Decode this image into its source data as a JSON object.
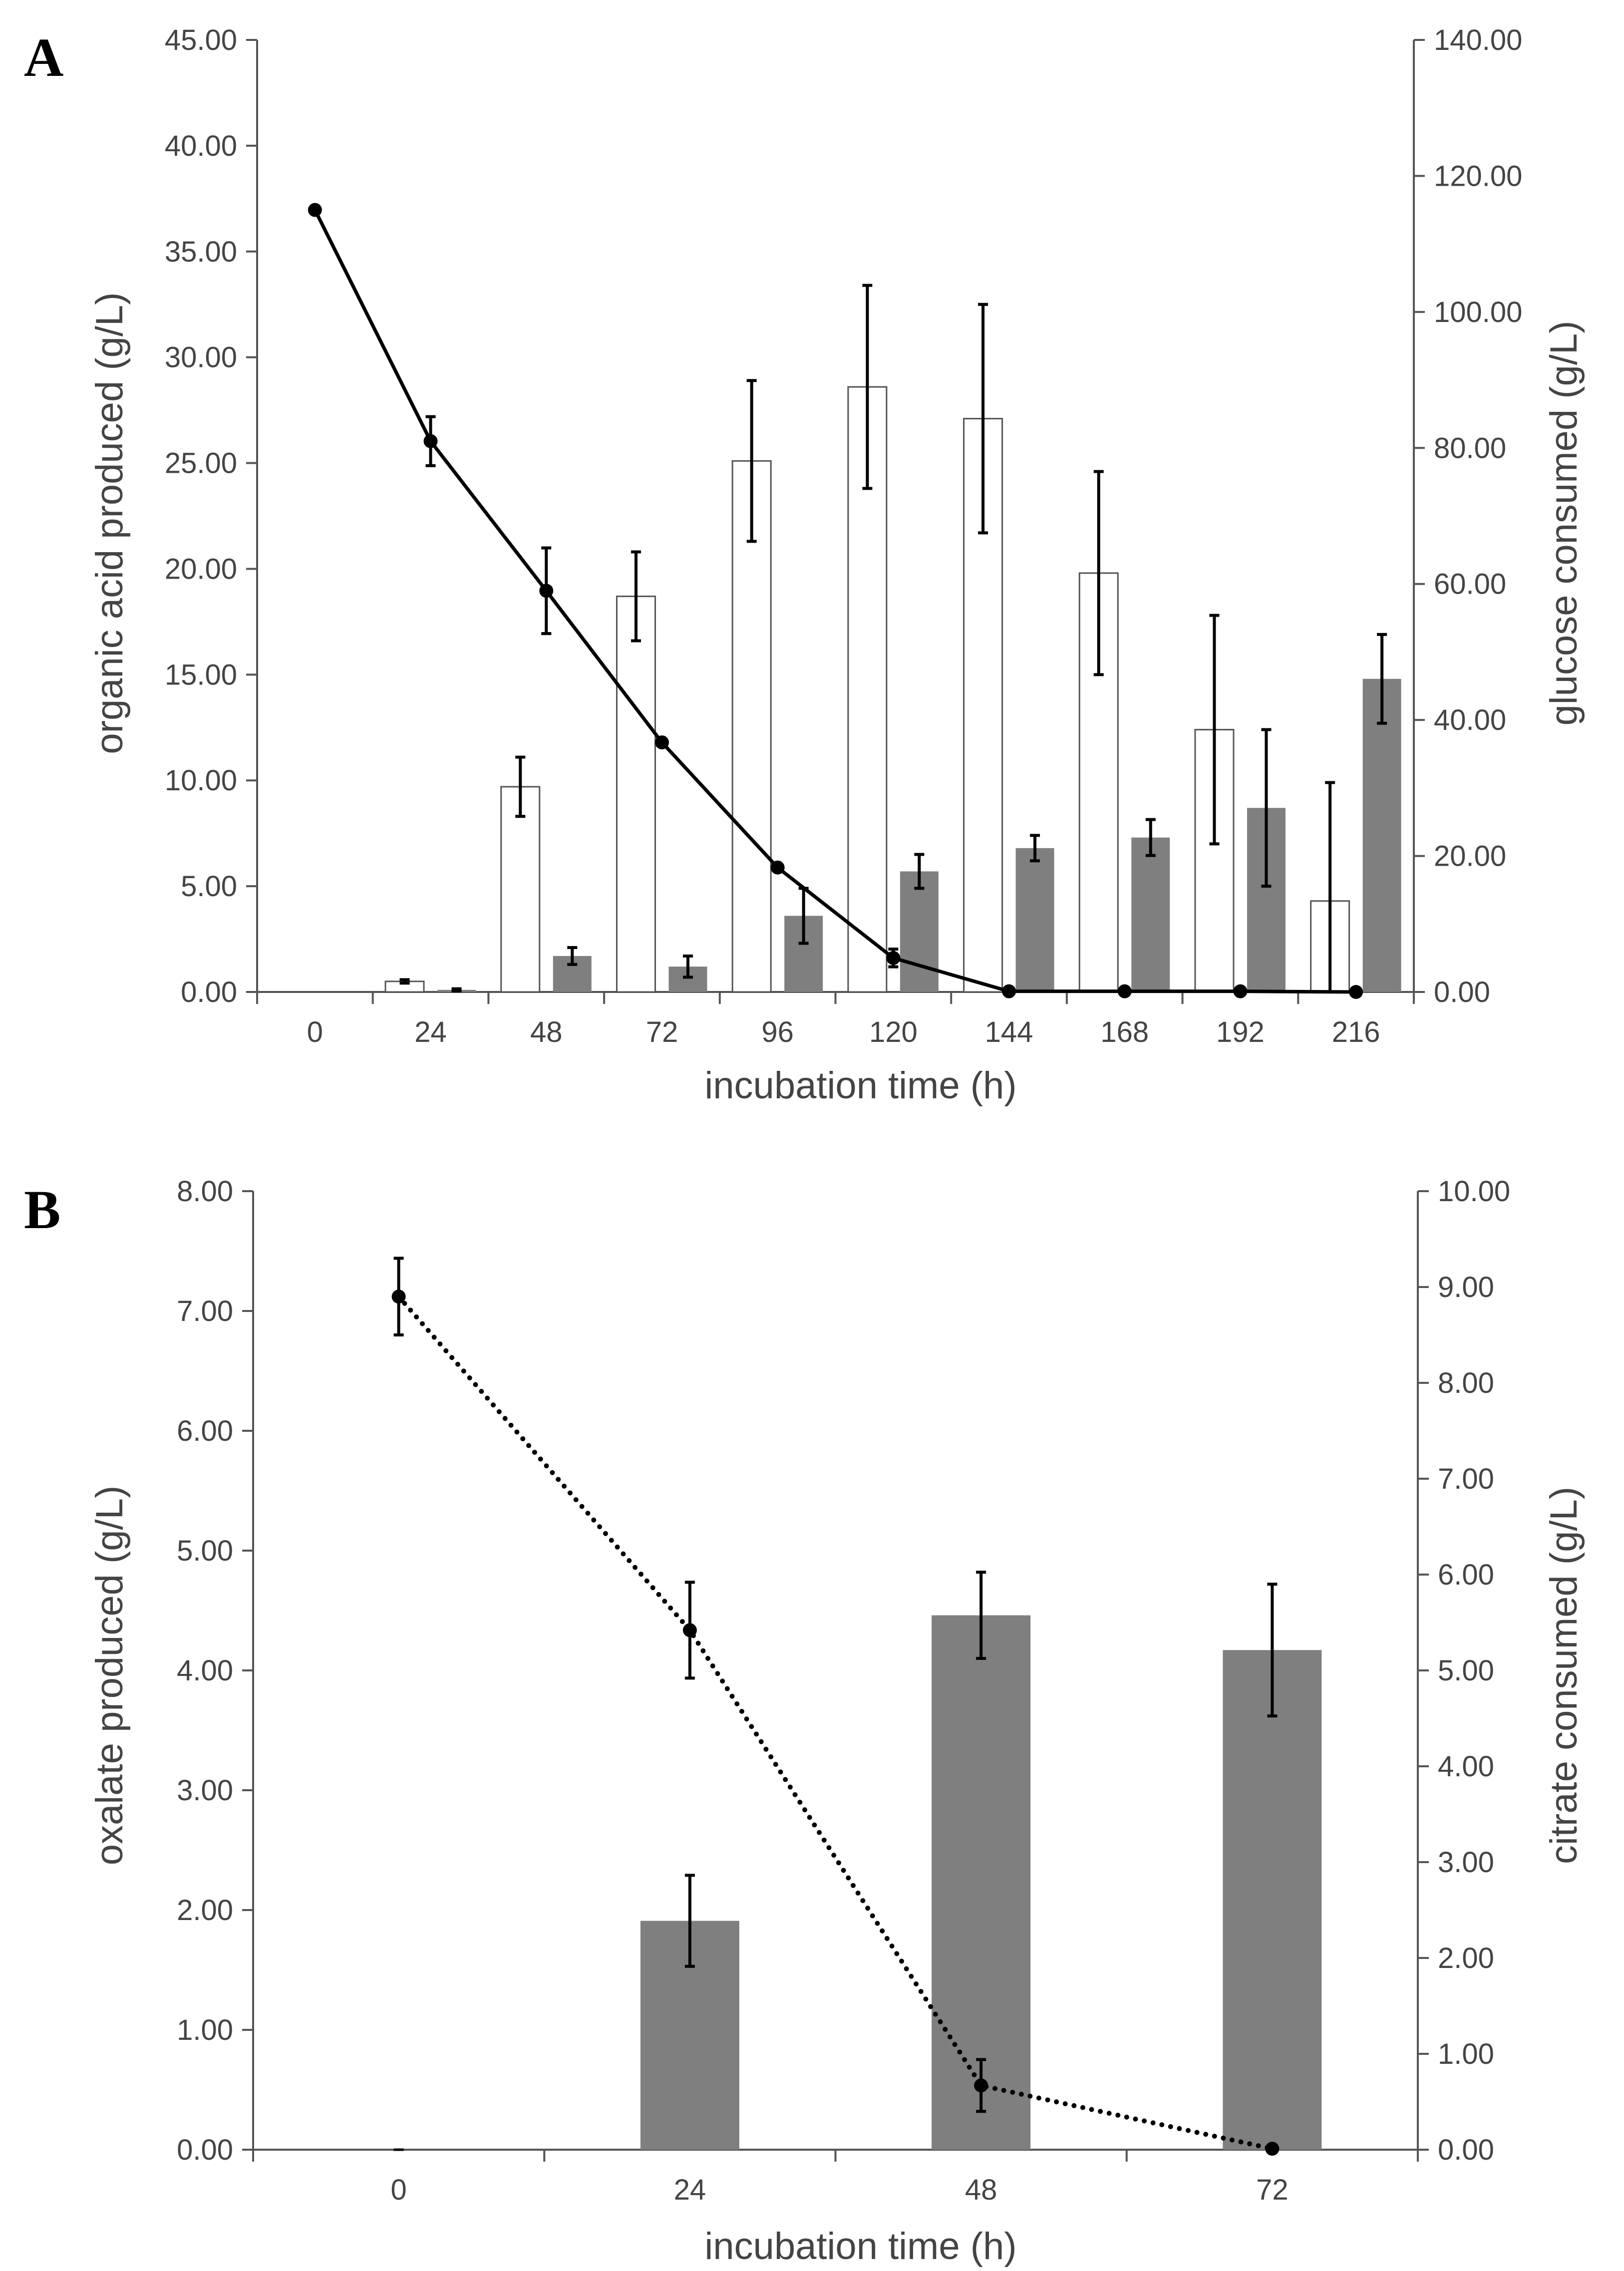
{
  "colors": {
    "white_bar_fill": "#ffffff",
    "white_bar_stroke": "#555555",
    "gray_bar_fill": "#7f7f7f",
    "line": "#000000",
    "axis": "#555555"
  },
  "chart_data": [
    {
      "panel_label": "A",
      "type": "bar",
      "combo": "bar+line",
      "xlabel": "incubation time (h)",
      "ylabel": "organic acid produced (g/L)",
      "y2label": "glucose consumed (g/L)",
      "categories": [
        "0",
        "24",
        "48",
        "72",
        "96",
        "120",
        "144",
        "168",
        "192",
        "216"
      ],
      "ylim": [
        0,
        45
      ],
      "y_ticks": [
        "0.00",
        "5.00",
        "10.00",
        "15.00",
        "20.00",
        "25.00",
        "30.00",
        "35.00",
        "40.00",
        "45.00"
      ],
      "y2lim": [
        0,
        140
      ],
      "y2_ticks": [
        "0.00",
        "20.00",
        "40.00",
        "60.00",
        "80.00",
        "100.00",
        "120.00",
        "140.00"
      ],
      "grid": false,
      "legend": "none",
      "series": [
        {
          "style": "white-bar",
          "axis": "left",
          "values": [
            0,
            0.5,
            9.7,
            18.7,
            25.1,
            28.6,
            27.1,
            19.8,
            12.4,
            4.3
          ],
          "errors": [
            0,
            0.08,
            1.4,
            2.1,
            3.8,
            4.8,
            5.4,
            4.8,
            5.4,
            5.6
          ]
        },
        {
          "style": "gray-bar",
          "axis": "left",
          "values": [
            0,
            0.1,
            1.7,
            1.2,
            3.6,
            5.7,
            6.8,
            7.3,
            8.7,
            14.8
          ],
          "errors": [
            0,
            0.05,
            0.4,
            0.5,
            1.3,
            0.8,
            0.6,
            0.85,
            3.7,
            2.1
          ]
        },
        {
          "style": "solid-line-markers",
          "axis": "right",
          "values": [
            115.0,
            81.0,
            59.0,
            36.7,
            18.3,
            5.0,
            0.1,
            0.1,
            0.1,
            0.0
          ],
          "errors": [
            0,
            3.6,
            6.3,
            0,
            0,
            1.3,
            0,
            0,
            0,
            0
          ]
        }
      ]
    },
    {
      "panel_label": "B",
      "type": "bar",
      "combo": "bar+line",
      "xlabel": "incubation time (h)",
      "ylabel": "oxalate produced (g/L)",
      "y2label": "citrate consumed (g/L)",
      "categories": [
        "0",
        "24",
        "48",
        "72"
      ],
      "ylim": [
        0,
        8
      ],
      "y_ticks": [
        "0.00",
        "1.00",
        "2.00",
        "3.00",
        "4.00",
        "5.00",
        "6.00",
        "7.00",
        "8.00"
      ],
      "y2lim": [
        0,
        10
      ],
      "y2_ticks": [
        "0.00",
        "1.00",
        "2.00",
        "3.00",
        "4.00",
        "5.00",
        "6.00",
        "7.00",
        "8.00",
        "9.00",
        "10.00"
      ],
      "grid": false,
      "legend": "none",
      "series": [
        {
          "style": "gray-bar",
          "axis": "left",
          "values": [
            0,
            1.91,
            4.46,
            4.17
          ],
          "errors": [
            0,
            0.38,
            0.36,
            0.55
          ]
        },
        {
          "style": "dotted-line-markers",
          "axis": "right",
          "values": [
            8.9,
            5.42,
            0.67,
            0.01
          ],
          "errors": [
            0.4,
            0.5,
            0.27,
            0
          ]
        }
      ]
    }
  ]
}
